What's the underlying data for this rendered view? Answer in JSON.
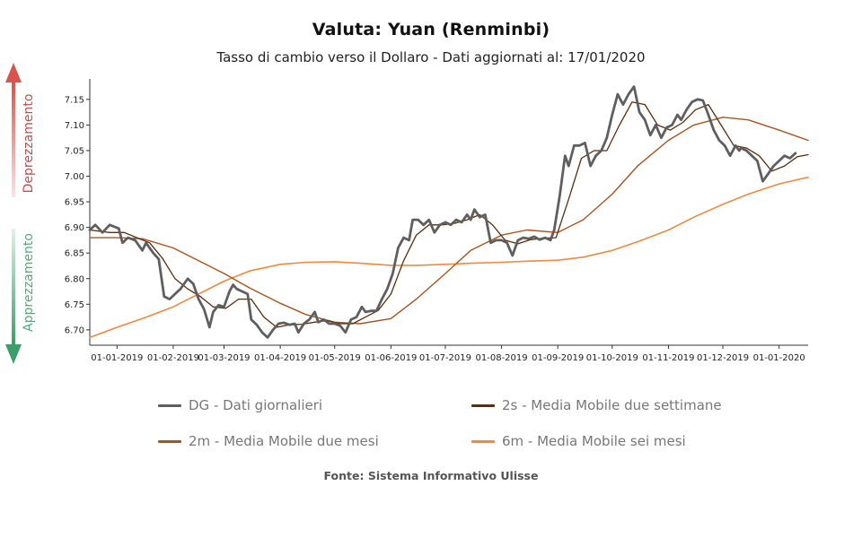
{
  "chart_data": {
    "type": "line",
    "title": "Valuta: Yuan (Renminbi)",
    "subtitle": "Tasso di cambio verso il Dollaro - Dati aggiornati al: 17/01/2020",
    "source": "Fonte: Sistema Informativo Ulisse",
    "ylim": [
      6.67,
      7.19
    ],
    "y_ticks": [
      6.7,
      6.75,
      6.8,
      6.85,
      6.9,
      6.95,
      7.0,
      7.05,
      7.1,
      7.15
    ],
    "x_range": [
      "2018-12-17",
      "2020-01-17"
    ],
    "x_ticks": [
      {
        "date": "2019-01-01",
        "label": "01-01-2019"
      },
      {
        "date": "2019-02-01",
        "label": "01-02-2019"
      },
      {
        "date": "2019-03-01",
        "label": "01-03-2019"
      },
      {
        "date": "2019-04-01",
        "label": "01-04-2019"
      },
      {
        "date": "2019-05-01",
        "label": "01-05-2019"
      },
      {
        "date": "2019-06-01",
        "label": "01-06-2019"
      },
      {
        "date": "2019-07-01",
        "label": "01-07-2019"
      },
      {
        "date": "2019-08-01",
        "label": "01-08-2019"
      },
      {
        "date": "2019-09-01",
        "label": "01-09-2019"
      },
      {
        "date": "2019-10-01",
        "label": "01-10-2019"
      },
      {
        "date": "2019-11-01",
        "label": "01-11-2019"
      },
      {
        "date": "2019-12-01",
        "label": "01-12-2019"
      },
      {
        "date": "2020-01-01",
        "label": "01-01-2020"
      }
    ],
    "side_labels": {
      "up": "Deprezzamento",
      "down": "Apprezzamento"
    },
    "grid": false,
    "legend_position": "bottom",
    "series": [
      {
        "name": "DG - Dati giornalieri",
        "color": "#5f5f5f",
        "points": [
          [
            "2018-12-17",
            6.895
          ],
          [
            "2018-12-20",
            6.905
          ],
          [
            "2018-12-24",
            6.89
          ],
          [
            "2018-12-28",
            6.905
          ],
          [
            "2019-01-02",
            6.898
          ],
          [
            "2019-01-04",
            6.87
          ],
          [
            "2019-01-07",
            6.88
          ],
          [
            "2019-01-11",
            6.875
          ],
          [
            "2019-01-15",
            6.855
          ],
          [
            "2019-01-17",
            6.87
          ],
          [
            "2019-01-21",
            6.85
          ],
          [
            "2019-01-24",
            6.838
          ],
          [
            "2019-01-27",
            6.765
          ],
          [
            "2019-01-30",
            6.76
          ],
          [
            "2019-02-02",
            6.77
          ],
          [
            "2019-02-05",
            6.78
          ],
          [
            "2019-02-09",
            6.8
          ],
          [
            "2019-02-12",
            6.79
          ],
          [
            "2019-02-15",
            6.76
          ],
          [
            "2019-02-18",
            6.74
          ],
          [
            "2019-02-21",
            6.705
          ],
          [
            "2019-02-23",
            6.735
          ],
          [
            "2019-02-26",
            6.748
          ],
          [
            "2019-03-01",
            6.745
          ],
          [
            "2019-03-04",
            6.775
          ],
          [
            "2019-03-06",
            6.788
          ],
          [
            "2019-03-08",
            6.78
          ],
          [
            "2019-03-11",
            6.775
          ],
          [
            "2019-03-14",
            6.77
          ],
          [
            "2019-03-16",
            6.72
          ],
          [
            "2019-03-19",
            6.71
          ],
          [
            "2019-03-22",
            6.695
          ],
          [
            "2019-03-25",
            6.685
          ],
          [
            "2019-03-28",
            6.7
          ],
          [
            "2019-03-31",
            6.712
          ],
          [
            "2019-04-03",
            6.714
          ],
          [
            "2019-04-06",
            6.71
          ],
          [
            "2019-04-09",
            6.712
          ],
          [
            "2019-04-11",
            6.695
          ],
          [
            "2019-04-14",
            6.712
          ],
          [
            "2019-04-17",
            6.72
          ],
          [
            "2019-04-20",
            6.735
          ],
          [
            "2019-04-22",
            6.715
          ],
          [
            "2019-04-25",
            6.72
          ],
          [
            "2019-04-28",
            6.712
          ],
          [
            "2019-05-01",
            6.712
          ],
          [
            "2019-05-04",
            6.708
          ],
          [
            "2019-05-07",
            6.695
          ],
          [
            "2019-05-10",
            6.72
          ],
          [
            "2019-05-13",
            6.725
          ],
          [
            "2019-05-16",
            6.745
          ],
          [
            "2019-05-18",
            6.735
          ],
          [
            "2019-05-21",
            6.737
          ],
          [
            "2019-05-24",
            6.737
          ],
          [
            "2019-05-27",
            6.76
          ],
          [
            "2019-05-30",
            6.78
          ],
          [
            "2019-06-02",
            6.81
          ],
          [
            "2019-06-05",
            6.86
          ],
          [
            "2019-06-08",
            6.88
          ],
          [
            "2019-06-11",
            6.875
          ],
          [
            "2019-06-13",
            6.915
          ],
          [
            "2019-06-16",
            6.915
          ],
          [
            "2019-06-19",
            6.905
          ],
          [
            "2019-06-22",
            6.915
          ],
          [
            "2019-06-25",
            6.89
          ],
          [
            "2019-06-28",
            6.905
          ],
          [
            "2019-07-01",
            6.91
          ],
          [
            "2019-07-04",
            6.905
          ],
          [
            "2019-07-07",
            6.915
          ],
          [
            "2019-07-10",
            6.91
          ],
          [
            "2019-07-13",
            6.925
          ],
          [
            "2019-07-15",
            6.915
          ],
          [
            "2019-07-17",
            6.935
          ],
          [
            "2019-07-20",
            6.92
          ],
          [
            "2019-07-23",
            6.925
          ],
          [
            "2019-07-26",
            6.87
          ],
          [
            "2019-07-29",
            6.875
          ],
          [
            "2019-08-01",
            6.875
          ],
          [
            "2019-08-04",
            6.87
          ],
          [
            "2019-08-07",
            6.845
          ],
          [
            "2019-08-10",
            6.875
          ],
          [
            "2019-08-13",
            6.88
          ],
          [
            "2019-08-16",
            6.878
          ],
          [
            "2019-08-19",
            6.882
          ],
          [
            "2019-08-22",
            6.876
          ],
          [
            "2019-08-25",
            6.88
          ],
          [
            "2019-08-28",
            6.875
          ],
          [
            "2019-08-30",
            6.895
          ],
          [
            "2019-09-02",
            6.96
          ],
          [
            "2019-09-05",
            7.04
          ],
          [
            "2019-09-07",
            7.02
          ],
          [
            "2019-09-10",
            7.06
          ],
          [
            "2019-09-13",
            7.06
          ],
          [
            "2019-09-16",
            7.065
          ],
          [
            "2019-09-19",
            7.02
          ],
          [
            "2019-09-22",
            7.04
          ],
          [
            "2019-09-25",
            7.05
          ],
          [
            "2019-09-28",
            7.075
          ],
          [
            "2019-10-01",
            7.12
          ],
          [
            "2019-10-04",
            7.16
          ],
          [
            "2019-10-07",
            7.14
          ],
          [
            "2019-10-10",
            7.16
          ],
          [
            "2019-10-13",
            7.175
          ],
          [
            "2019-10-16",
            7.125
          ],
          [
            "2019-10-19",
            7.11
          ],
          [
            "2019-10-22",
            7.08
          ],
          [
            "2019-10-25",
            7.1
          ],
          [
            "2019-10-28",
            7.075
          ],
          [
            "2019-10-31",
            7.095
          ],
          [
            "2019-11-03",
            7.1
          ],
          [
            "2019-11-06",
            7.12
          ],
          [
            "2019-11-08",
            7.11
          ],
          [
            "2019-11-11",
            7.13
          ],
          [
            "2019-11-14",
            7.145
          ],
          [
            "2019-11-17",
            7.15
          ],
          [
            "2019-11-20",
            7.148
          ],
          [
            "2019-11-23",
            7.12
          ],
          [
            "2019-11-26",
            7.09
          ],
          [
            "2019-11-29",
            7.07
          ],
          [
            "2019-12-02",
            7.06
          ],
          [
            "2019-12-05",
            7.04
          ],
          [
            "2019-12-08",
            7.06
          ],
          [
            "2019-12-11",
            7.055
          ],
          [
            "2019-12-14",
            7.05
          ],
          [
            "2019-12-17",
            7.04
          ],
          [
            "2019-12-20",
            7.03
          ],
          [
            "2019-12-23",
            6.99
          ],
          [
            "2019-12-26",
            7.005
          ],
          [
            "2019-12-29",
            7.02
          ],
          [
            "2020-01-01",
            7.03
          ],
          [
            "2020-01-04",
            7.04
          ],
          [
            "2020-01-07",
            7.035
          ],
          [
            "2020-01-10",
            7.045
          ],
          [
            "2019-12-10",
            7.05
          ]
        ]
      },
      {
        "name": "2s - Media Mobile due settimane",
        "color": "#5c2d0c",
        "points": [
          [
            "2018-12-17",
            6.895
          ],
          [
            "2018-12-28",
            6.89
          ],
          [
            "2019-01-05",
            6.89
          ],
          [
            "2019-01-12",
            6.88
          ],
          [
            "2019-01-19",
            6.87
          ],
          [
            "2019-01-26",
            6.84
          ],
          [
            "2019-02-02",
            6.8
          ],
          [
            "2019-02-09",
            6.78
          ],
          [
            "2019-02-16",
            6.765
          ],
          [
            "2019-02-23",
            6.745
          ],
          [
            "2019-03-02",
            6.742
          ],
          [
            "2019-03-09",
            6.76
          ],
          [
            "2019-03-16",
            6.76
          ],
          [
            "2019-03-23",
            6.725
          ],
          [
            "2019-03-30",
            6.705
          ],
          [
            "2019-04-06",
            6.71
          ],
          [
            "2019-04-13",
            6.711
          ],
          [
            "2019-04-20",
            6.715
          ],
          [
            "2019-04-27",
            6.718
          ],
          [
            "2019-05-04",
            6.712
          ],
          [
            "2019-05-11",
            6.712
          ],
          [
            "2019-05-18",
            6.725
          ],
          [
            "2019-05-25",
            6.738
          ],
          [
            "2019-06-01",
            6.77
          ],
          [
            "2019-06-08",
            6.835
          ],
          [
            "2019-06-15",
            6.885
          ],
          [
            "2019-06-22",
            6.905
          ],
          [
            "2019-06-29",
            6.905
          ],
          [
            "2019-07-06",
            6.908
          ],
          [
            "2019-07-13",
            6.915
          ],
          [
            "2019-07-20",
            6.925
          ],
          [
            "2019-07-27",
            6.905
          ],
          [
            "2019-08-03",
            6.875
          ],
          [
            "2019-08-10",
            6.868
          ],
          [
            "2019-08-17",
            6.876
          ],
          [
            "2019-08-24",
            6.879
          ],
          [
            "2019-08-31",
            6.88
          ],
          [
            "2019-09-07",
            6.955
          ],
          [
            "2019-09-14",
            7.035
          ],
          [
            "2019-09-21",
            7.05
          ],
          [
            "2019-09-28",
            7.05
          ],
          [
            "2019-10-05",
            7.1
          ],
          [
            "2019-10-12",
            7.145
          ],
          [
            "2019-10-19",
            7.14
          ],
          [
            "2019-10-26",
            7.1
          ],
          [
            "2019-11-02",
            7.09
          ],
          [
            "2019-11-09",
            7.105
          ],
          [
            "2019-11-16",
            7.13
          ],
          [
            "2019-11-23",
            7.14
          ],
          [
            "2019-11-30",
            7.1
          ],
          [
            "2019-12-07",
            7.06
          ],
          [
            "2019-12-14",
            7.055
          ],
          [
            "2019-12-21",
            7.04
          ],
          [
            "2019-12-28",
            7.01
          ],
          [
            "2020-01-04",
            7.02
          ],
          [
            "2020-01-11",
            7.038
          ],
          [
            "2020-01-17",
            7.042
          ]
        ]
      },
      {
        "name": "2m - Media Mobile due mesi",
        "color": "#a9531f",
        "points": [
          [
            "2018-12-17",
            6.88
          ],
          [
            "2019-01-01",
            6.88
          ],
          [
            "2019-01-15",
            6.878
          ],
          [
            "2019-02-01",
            6.86
          ],
          [
            "2019-02-15",
            6.835
          ],
          [
            "2019-03-01",
            6.81
          ],
          [
            "2019-03-15",
            6.782
          ],
          [
            "2019-04-01",
            6.752
          ],
          [
            "2019-04-15",
            6.73
          ],
          [
            "2019-05-01",
            6.715
          ],
          [
            "2019-05-15",
            6.712
          ],
          [
            "2019-06-01",
            6.722
          ],
          [
            "2019-06-15",
            6.76
          ],
          [
            "2019-07-01",
            6.81
          ],
          [
            "2019-07-15",
            6.855
          ],
          [
            "2019-08-01",
            6.885
          ],
          [
            "2019-08-15",
            6.895
          ],
          [
            "2019-09-01",
            6.89
          ],
          [
            "2019-09-15",
            6.915
          ],
          [
            "2019-10-01",
            6.965
          ],
          [
            "2019-10-15",
            7.02
          ],
          [
            "2019-11-01",
            7.07
          ],
          [
            "2019-11-15",
            7.1
          ],
          [
            "2019-12-01",
            7.115
          ],
          [
            "2019-12-15",
            7.11
          ],
          [
            "2020-01-01",
            7.09
          ],
          [
            "2020-01-17",
            7.07
          ]
        ]
      },
      {
        "name": "6m - Media Mobile sei mesi",
        "color": "#f2893f",
        "points": [
          [
            "2018-12-17",
            6.685
          ],
          [
            "2019-01-01",
            6.705
          ],
          [
            "2019-01-15",
            6.722
          ],
          [
            "2019-02-01",
            6.745
          ],
          [
            "2019-02-15",
            6.77
          ],
          [
            "2019-03-01",
            6.795
          ],
          [
            "2019-03-15",
            6.815
          ],
          [
            "2019-04-01",
            6.828
          ],
          [
            "2019-04-15",
            6.832
          ],
          [
            "2019-05-01",
            6.833
          ],
          [
            "2019-05-15",
            6.83
          ],
          [
            "2019-06-01",
            6.826
          ],
          [
            "2019-06-15",
            6.826
          ],
          [
            "2019-07-01",
            6.828
          ],
          [
            "2019-07-15",
            6.83
          ],
          [
            "2019-08-01",
            6.832
          ],
          [
            "2019-08-15",
            6.834
          ],
          [
            "2019-09-01",
            6.836
          ],
          [
            "2019-09-15",
            6.842
          ],
          [
            "2019-10-01",
            6.855
          ],
          [
            "2019-10-15",
            6.872
          ],
          [
            "2019-11-01",
            6.895
          ],
          [
            "2019-11-15",
            6.92
          ],
          [
            "2019-12-01",
            6.945
          ],
          [
            "2019-12-15",
            6.965
          ],
          [
            "2020-01-01",
            6.985
          ],
          [
            "2020-01-17",
            6.998
          ]
        ]
      }
    ]
  }
}
